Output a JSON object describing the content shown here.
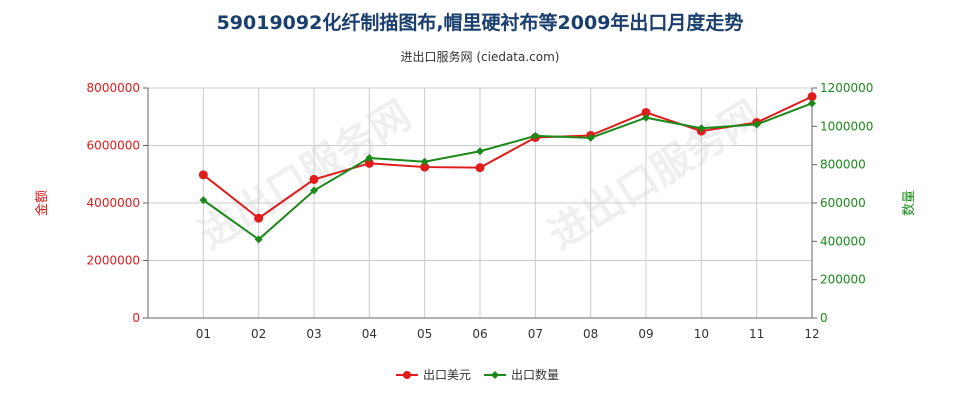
{
  "header": {
    "title": "59019092化纤制描图布,帽里硬衬布等2009年出口月度走势",
    "subtitle": "进出口服务网 (ciedata.com)"
  },
  "colors": {
    "amount": "#e01c1c",
    "quantity": "#1b8a1b",
    "grid": "#cccccc",
    "axis": "#666666"
  },
  "watermark": {
    "text": "进出口服务网"
  },
  "chart_data": {
    "type": "line",
    "categories": [
      "01",
      "02",
      "03",
      "04",
      "05",
      "06",
      "07",
      "08",
      "09",
      "10",
      "11",
      "12"
    ],
    "series": [
      {
        "name": "出口美元",
        "axis": "left",
        "values": [
          4980000,
          3470000,
          4820000,
          5380000,
          5250000,
          5230000,
          6280000,
          6350000,
          7150000,
          6500000,
          6800000,
          7700000
        ]
      },
      {
        "name": "出口数量",
        "axis": "right",
        "values": [
          615000,
          410000,
          665000,
          835000,
          815000,
          870000,
          950000,
          940000,
          1045000,
          990000,
          1010000,
          1120000
        ]
      }
    ],
    "ylabel_left": "金额",
    "ylabel_right": "数量",
    "ylim_left": [
      0,
      8000000
    ],
    "ylim_right": [
      0,
      1200000
    ],
    "yticks_left": [
      "0",
      "2000000",
      "4000000",
      "6000000",
      "8000000"
    ],
    "yticks_right": [
      "0",
      "200000",
      "400000",
      "600000",
      "800000",
      "1000000",
      "1200000"
    ],
    "grid": true,
    "legend_position": "bottom"
  }
}
